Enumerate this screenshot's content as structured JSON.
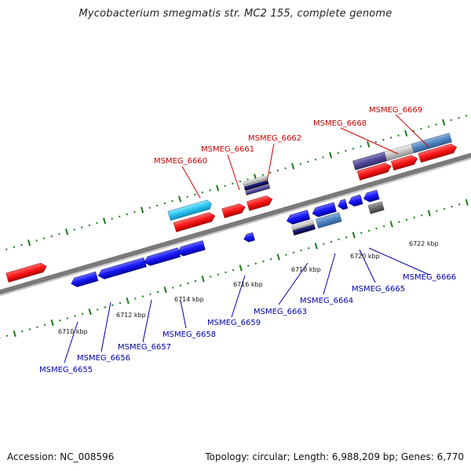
{
  "header": {
    "title": "Mycobacterium smegmatis str. MC2 155, complete genome"
  },
  "footer": {
    "accession": "Accession: NC_008596",
    "summary": "Topology: circular; Length: 6,988,209 bp; Genes: 6,770"
  },
  "scale": {
    "ticks": [
      "6710 kbp",
      "6712 kbp",
      "6714 kbp",
      "6716 kbp",
      "6718 kbp",
      "6720 kbp",
      "6722 kbp"
    ]
  },
  "genes": {
    "forward_labels": [
      "MSMEG_6660",
      "MSMEG_6661",
      "MSMEG_6662",
      "MSMEG_6668",
      "MSMEG_6669"
    ],
    "reverse_labels": [
      "MSMEG_6655",
      "MSMEG_6656",
      "MSMEG_6657",
      "MSMEG_6658",
      "MSMEG_6659",
      "MSMEG_6663",
      "MSMEG_6664",
      "MSMEG_6665",
      "MSMEG_6666"
    ]
  },
  "colors": {
    "forward_gene": "#ff1a1a",
    "reverse_gene": "#1a1aff",
    "forward_label": "#cc0000",
    "reverse_label": "#0000aa",
    "tick": "#1a7a1a",
    "backbone": "#888888"
  }
}
